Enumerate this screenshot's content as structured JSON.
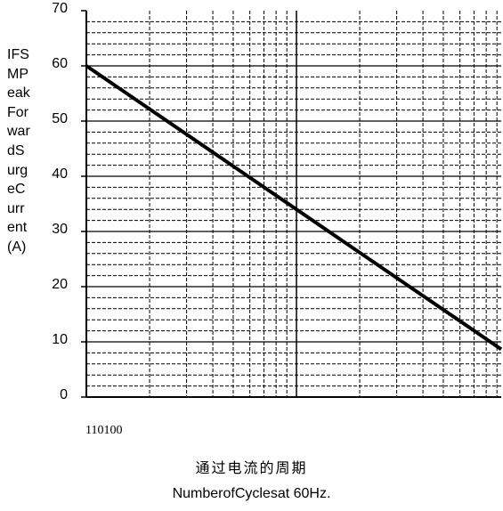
{
  "chart_data": {
    "type": "line",
    "ylabel_lines": [
      "IFS",
      "MP",
      "eak",
      "For",
      "war",
      "dS",
      "urg",
      "eC",
      "urr",
      "ent",
      "(A)"
    ],
    "yticks": [
      "70",
      "60",
      "50",
      "40",
      "30",
      "20",
      "10",
      "0"
    ],
    "ylim": [
      0,
      70
    ],
    "xtick_text": "110100",
    "xscale": "log",
    "xlim": [
      1,
      100
    ],
    "xlabel_cn": "通过电流的周期",
    "xlabel": "NumberofCyclesat 60Hz.",
    "grid": true,
    "series": [
      {
        "x": [
          1,
          10,
          100
        ],
        "values": [
          60,
          34,
          8
        ]
      }
    ],
    "colors": {
      "line": "#000000",
      "grid": "#000000"
    }
  }
}
